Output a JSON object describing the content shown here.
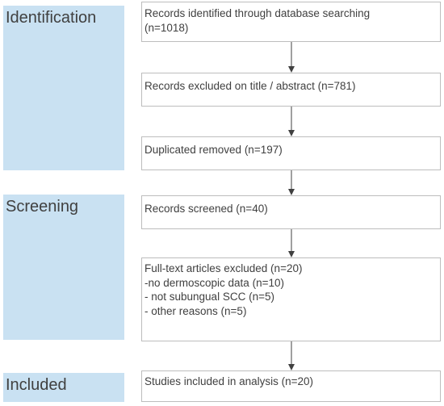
{
  "stages": [
    {
      "id": "identification",
      "label": "Identification"
    },
    {
      "id": "screening",
      "label": "Screening"
    },
    {
      "id": "included",
      "label": "Included"
    }
  ],
  "boxes": [
    {
      "id": "identified",
      "lines": [
        "Records identified through database searching",
        "(n=1018)"
      ]
    },
    {
      "id": "excluded-title",
      "lines": [
        "Records excluded on title / abstract (n=781)"
      ]
    },
    {
      "id": "duplicates",
      "lines": [
        "Duplicated removed (n=197)"
      ]
    },
    {
      "id": "screened",
      "lines": [
        "Records screened (n=40)"
      ]
    },
    {
      "id": "fulltext-excluded",
      "lines": [
        "Full-text articles excluded (n=20)",
        "-no dermoscopic data (n=10)",
        "- not subungual SCC (n=5)",
        "- other reasons (n=5)"
      ]
    },
    {
      "id": "included-studies",
      "lines": [
        "Studies included in analysis (n=20)"
      ]
    }
  ]
}
